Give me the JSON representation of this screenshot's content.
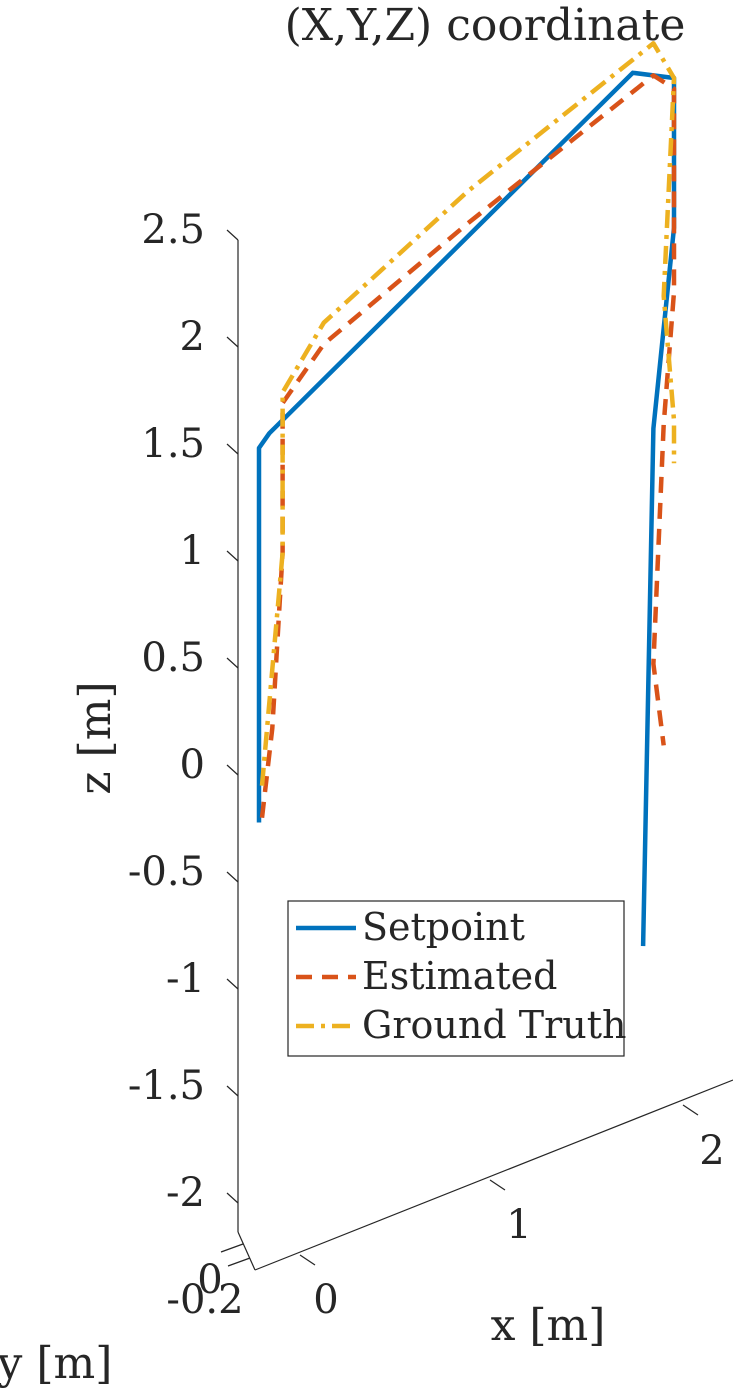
{
  "chart_data": {
    "type": "line",
    "title": "(X,Y,Z) coordinate",
    "xlabel": "x [m]",
    "ylabel": "y [m]",
    "zlabel": "z [m]",
    "z_ticks": [
      "2.5",
      "2",
      "1.5",
      "1",
      "0.5",
      "0",
      "-0.5",
      "-1",
      "-1.5",
      "-2"
    ],
    "z_tick_values": [
      2.5,
      2,
      1.5,
      1,
      0.5,
      0,
      -0.5,
      -1,
      -1.5,
      -2
    ],
    "x_ticks": [
      "0",
      "1",
      "2"
    ],
    "y_ticks": [
      "0",
      "-0.2"
    ],
    "legend_position": "lower-left inside",
    "series": [
      {
        "name": "Setpoint",
        "color": "#0072BD",
        "style": "solid",
        "points": [
          [
            0,
            -0.05,
            -0.25
          ],
          [
            0,
            -0.05,
            1.5
          ],
          [
            0.05,
            -0.05,
            1.55
          ],
          [
            1.8,
            0,
            2.6
          ],
          [
            2.0,
            0,
            2.5
          ],
          [
            2.0,
            0,
            1.8
          ],
          [
            1.9,
            0,
            0.9
          ],
          [
            1.85,
            0,
            -1.5
          ]
        ]
      },
      {
        "name": "Estimated",
        "color": "#D95319",
        "style": "dashed",
        "points": [
          [
            0,
            0,
            -0.2
          ],
          [
            0.05,
            0,
            0.2
          ],
          [
            0.1,
            0,
            1.0
          ],
          [
            0.1,
            0,
            1.7
          ],
          [
            0.3,
            0,
            1.9
          ],
          [
            1.0,
            0,
            2.2
          ],
          [
            1.9,
            0,
            2.55
          ],
          [
            2.0,
            0,
            2.45
          ],
          [
            2.0,
            0,
            1.5
          ],
          [
            1.95,
            0,
            0.9
          ],
          [
            1.9,
            0,
            -0.2
          ],
          [
            1.95,
            0,
            -0.6
          ]
        ]
      },
      {
        "name": "Ground Truth",
        "color": "#EDB120",
        "style": "dash-dot",
        "points": [
          [
            0,
            0,
            -0.05
          ],
          [
            0.1,
            0,
            1.0
          ],
          [
            0.1,
            0,
            1.75
          ],
          [
            0.3,
            0,
            2.0
          ],
          [
            1.0,
            0,
            2.35
          ],
          [
            1.9,
            0,
            2.7
          ],
          [
            2.0,
            0,
            2.5
          ],
          [
            1.95,
            0,
            1.5
          ],
          [
            2.0,
            0,
            0.9
          ],
          [
            2.0,
            0,
            0.7
          ]
        ]
      }
    ]
  }
}
